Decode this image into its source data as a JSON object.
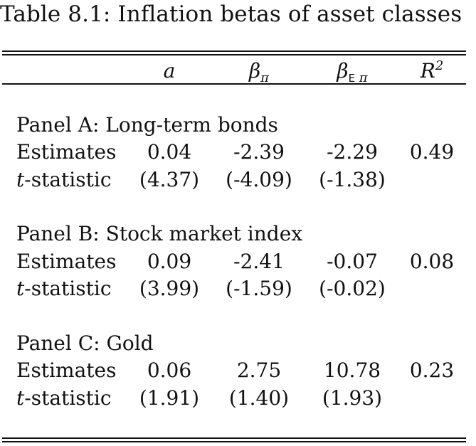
{
  "caption": "Table 8.1: Inflation betas of asset classes",
  "header": {
    "a": "a",
    "beta_pi": "β",
    "beta_pi_sub": "π",
    "beta_epi": "β",
    "beta_epi_sub_bb": "E",
    "beta_epi_sub_pi": "π",
    "r2": "R",
    "r2_sup": "2"
  },
  "row_labels": {
    "estimates": "Estimates",
    "t_prefix": "t",
    "t_suffix": "-statistic"
  },
  "panels": [
    {
      "title": "Panel A: Long-term bonds",
      "estimates": [
        "0.04",
        "-2.39",
        "-2.29",
        "0.49"
      ],
      "tstats": [
        "(4.37)",
        "(-4.09)",
        "(-1.38)"
      ]
    },
    {
      "title": "Panel B: Stock market index",
      "estimates": [
        "0.09",
        "-2.41",
        "-0.07",
        "0.08"
      ],
      "tstats": [
        "(3.99)",
        "(-1.59)",
        "(-0.02)"
      ]
    },
    {
      "title": "Panel C: Gold",
      "estimates": [
        "0.06",
        "2.75",
        "10.78",
        "0.23"
      ],
      "tstats": [
        "(1.91)",
        "(1.40)",
        "(1.93)"
      ]
    }
  ]
}
